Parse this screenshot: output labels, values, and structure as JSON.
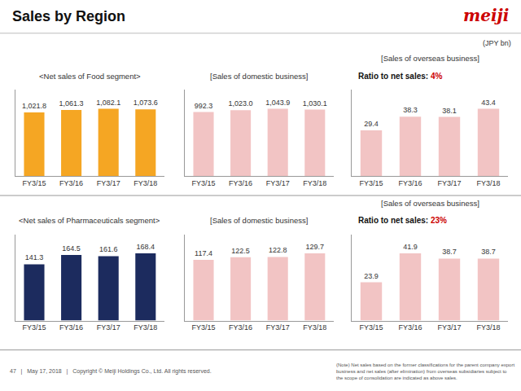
{
  "title": "Sales by Region",
  "annotations": [
    {
      "text": "meiji",
      "color": "#cc0000"
    },
    {
      "text": "(JPY bn)"
    },
    {
      "text": "47   |   May 17, 2018   |   Copyright © Meiji Holdings Co., Ltd. All rights reserved."
    },
    {
      "text": "(Note) Net sales based on the former classifications for the parent company export\nbusiness and net sales (after elimination) from overseas subsidiaries subject to\nthe scope of consolidation are indicated as above sales."
    }
  ],
  "chart_data": [
    {
      "type": "bar",
      "title": "<Net sales of Food segment>",
      "categories": [
        "FY3/15",
        "FY3/16",
        "FY3/17",
        "FY3/18"
      ],
      "values": [
        1021.8,
        1061.3,
        1082.1,
        1073.6
      ],
      "value_labels": [
        "1,021.8",
        "1,061.3",
        "1,082.1",
        "1,073.6"
      ],
      "color": "#f5a623",
      "ylim": [
        0,
        1385.088
      ],
      "tick_labels": "x",
      "grid": false,
      "data_labels": true
    },
    {
      "type": "bar",
      "title": "[Sales of domestic business]",
      "categories": [
        "FY3/15",
        "FY3/16",
        "FY3/17",
        "FY3/18"
      ],
      "values": [
        992.3,
        1023.0,
        1043.9,
        1030.1
      ],
      "value_labels": [
        "992.3",
        "1,023.0",
        "1,043.9",
        "1,030.1"
      ],
      "color": "#f2c4c4",
      "ylim": [
        0,
        1336.192
      ],
      "tick_labels": "x",
      "grid": false,
      "data_labels": true
    },
    {
      "type": "bar",
      "title": "[Sales of overseas business]",
      "annotations": [
        {
          "text": "Ratio to net sales:"
        },
        {
          "text": "4%",
          "color": "#cc0000"
        }
      ],
      "categories": [
        "FY3/15",
        "FY3/16",
        "FY3/17",
        "FY3/18"
      ],
      "values": [
        29.4,
        38.3,
        38.1,
        43.4
      ],
      "color": "#f2c4c4",
      "ylim": [
        0,
        55.552
      ],
      "tick_labels": "x",
      "grid": false,
      "data_labels": true
    },
    {
      "type": "bar",
      "title": "<Net sales of Pharmaceuticals segment>",
      "categories": [
        "FY3/15",
        "FY3/16",
        "FY3/17",
        "FY3/18"
      ],
      "values": [
        141.3,
        164.5,
        161.6,
        168.4
      ],
      "color": "#1c2b5e",
      "ylim": [
        0,
        215.552
      ],
      "tick_labels": "x",
      "grid": false,
      "data_labels": true
    },
    {
      "type": "bar",
      "title": "[Sales of domestic business]",
      "categories": [
        "FY3/15",
        "FY3/16",
        "FY3/17",
        "FY3/18"
      ],
      "values": [
        117.4,
        122.5,
        122.8,
        129.7
      ],
      "color": "#f2c4c4",
      "ylim": [
        0,
        166.016
      ],
      "tick_labels": "x",
      "grid": false,
      "data_labels": true
    },
    {
      "type": "bar",
      "title": "[Sales of overseas business]",
      "annotations": [
        {
          "text": "Ratio to net sales:"
        },
        {
          "text": "23%",
          "color": "#cc0000"
        }
      ],
      "categories": [
        "FY3/15",
        "FY3/16",
        "FY3/17",
        "FY3/18"
      ],
      "values": [
        23.9,
        41.9,
        38.7,
        38.7
      ],
      "color": "#f2c4c4",
      "ylim": [
        0,
        53.632
      ],
      "tick_labels": "x",
      "grid": false,
      "data_labels": true
    }
  ]
}
